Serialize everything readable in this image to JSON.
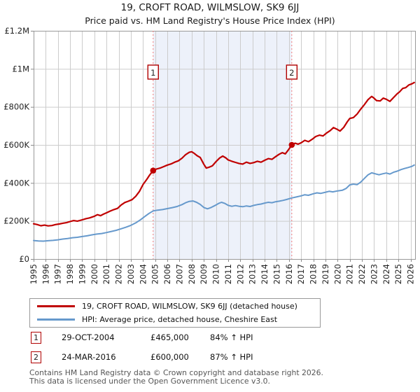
{
  "title": "19, CROFT ROAD, WILMSLOW, SK9 6JJ",
  "subtitle": "Price paid vs. HM Land Registry's House Price Index (HPI)",
  "legend": {
    "items": [
      {
        "name": "price-paid",
        "label": "19, CROFT ROAD, WILMSLOW, SK9 6JJ (detached house)",
        "color": "#c00000"
      },
      {
        "name": "hpi",
        "label": "HPI: Average price, detached house, Cheshire East",
        "color": "#6699cc"
      }
    ]
  },
  "transactions": [
    {
      "num": "1",
      "date": "29-OCT-2004",
      "price": "£465,000",
      "hpi_change": "84% ↑ HPI",
      "year": 2004.83,
      "value_k": 465
    },
    {
      "num": "2",
      "date": "24-MAR-2016",
      "price": "£600,000",
      "hpi_change": "87% ↑ HPI",
      "year": 2016.23,
      "value_k": 600
    }
  ],
  "footer": {
    "line1": "Contains HM Land Registry data © Crown copyright and database right 2026.",
    "line2": "This data is licensed under the Open Government Licence v3.0."
  },
  "colors": {
    "grid": "#cccccc",
    "frame": "#999999",
    "tick": "#888888",
    "axis_label": "#222222",
    "shade": "#edf1fa",
    "dashed": "#f07c7c",
    "marker_border": "#b00000",
    "price_line": "#c00000",
    "hpi_line": "#6699cc"
  },
  "chart_data": {
    "type": "line",
    "x_min": 1995,
    "x_max": 2026.37,
    "ylim_k": [
      0,
      1200
    ],
    "grid": true,
    "legend_position": "bottom",
    "y_ticks": [
      {
        "v": 0,
        "label": "£0"
      },
      {
        "v": 200,
        "label": "£200K"
      },
      {
        "v": 400,
        "label": "£400K"
      },
      {
        "v": 600,
        "label": "£600K"
      },
      {
        "v": 800,
        "label": "£800K"
      },
      {
        "v": 1000,
        "label": "£1M"
      },
      {
        "v": 1200,
        "label": "£1.2M"
      }
    ],
    "x_tick_years": [
      1995,
      1996,
      1997,
      1998,
      1999,
      2000,
      2001,
      2002,
      2003,
      2004,
      2005,
      2006,
      2007,
      2008,
      2009,
      2010,
      2011,
      2012,
      2013,
      2014,
      2015,
      2016,
      2017,
      2018,
      2019,
      2020,
      2021,
      2022,
      2023,
      2024,
      2025,
      2026
    ],
    "shaded_span": {
      "from": 2004.83,
      "to": 2016.23
    },
    "sale_markers": [
      {
        "num": "1",
        "year": 2004.83,
        "value_k": 465
      },
      {
        "num": "2",
        "year": 2016.23,
        "value_k": 600
      }
    ],
    "series": [
      {
        "name": "price-paid",
        "color": "#c00000",
        "width": 2.2,
        "points": [
          [
            1995.0,
            185
          ],
          [
            1995.3,
            181
          ],
          [
            1995.6,
            175
          ],
          [
            1995.9,
            178
          ],
          [
            1996.2,
            174
          ],
          [
            1996.5,
            176
          ],
          [
            1996.8,
            181
          ],
          [
            1997.1,
            184
          ],
          [
            1997.4,
            188
          ],
          [
            1997.7,
            191
          ],
          [
            1998.0,
            197
          ],
          [
            1998.3,
            202
          ],
          [
            1998.6,
            199
          ],
          [
            1999.0,
            206
          ],
          [
            1999.3,
            212
          ],
          [
            1999.6,
            216
          ],
          [
            2000.0,
            225
          ],
          [
            2000.25,
            233
          ],
          [
            2000.5,
            228
          ],
          [
            2000.75,
            236
          ],
          [
            2001.0,
            243
          ],
          [
            2001.3,
            252
          ],
          [
            2001.6,
            260
          ],
          [
            2001.9,
            266
          ],
          [
            2002.2,
            284
          ],
          [
            2002.5,
            297
          ],
          [
            2002.8,
            304
          ],
          [
            2003.1,
            312
          ],
          [
            2003.4,
            330
          ],
          [
            2003.7,
            355
          ],
          [
            2004.0,
            392
          ],
          [
            2004.3,
            418
          ],
          [
            2004.55,
            442
          ],
          [
            2004.83,
            465
          ],
          [
            2005.1,
            473
          ],
          [
            2005.4,
            478
          ],
          [
            2005.7,
            486
          ],
          [
            2006.0,
            494
          ],
          [
            2006.3,
            500
          ],
          [
            2006.6,
            509
          ],
          [
            2006.9,
            516
          ],
          [
            2007.2,
            530
          ],
          [
            2007.5,
            549
          ],
          [
            2007.8,
            561
          ],
          [
            2008.0,
            564
          ],
          [
            2008.2,
            556
          ],
          [
            2008.45,
            543
          ],
          [
            2008.7,
            534
          ],
          [
            2009.0,
            498
          ],
          [
            2009.2,
            478
          ],
          [
            2009.45,
            483
          ],
          [
            2009.7,
            490
          ],
          [
            2010.0,
            512
          ],
          [
            2010.3,
            531
          ],
          [
            2010.55,
            541
          ],
          [
            2010.8,
            532
          ],
          [
            2011.0,
            521
          ],
          [
            2011.3,
            514
          ],
          [
            2011.6,
            508
          ],
          [
            2011.9,
            502
          ],
          [
            2012.2,
            499
          ],
          [
            2012.5,
            509
          ],
          [
            2012.8,
            503
          ],
          [
            2013.1,
            507
          ],
          [
            2013.4,
            514
          ],
          [
            2013.7,
            509
          ],
          [
            2014.0,
            519
          ],
          [
            2014.3,
            528
          ],
          [
            2014.6,
            524
          ],
          [
            2014.9,
            538
          ],
          [
            2015.2,
            551
          ],
          [
            2015.45,
            559
          ],
          [
            2015.7,
            553
          ],
          [
            2015.95,
            574
          ],
          [
            2016.23,
            600
          ],
          [
            2016.5,
            609
          ],
          [
            2016.75,
            604
          ],
          [
            2017.0,
            611
          ],
          [
            2017.3,
            624
          ],
          [
            2017.6,
            617
          ],
          [
            2017.9,
            629
          ],
          [
            2018.2,
            644
          ],
          [
            2018.5,
            651
          ],
          [
            2018.8,
            647
          ],
          [
            2019.1,
            663
          ],
          [
            2019.4,
            676
          ],
          [
            2019.65,
            691
          ],
          [
            2019.9,
            684
          ],
          [
            2020.2,
            673
          ],
          [
            2020.5,
            692
          ],
          [
            2020.8,
            722
          ],
          [
            2021.0,
            739
          ],
          [
            2021.3,
            744
          ],
          [
            2021.6,
            762
          ],
          [
            2021.9,
            788
          ],
          [
            2022.2,
            812
          ],
          [
            2022.5,
            838
          ],
          [
            2022.8,
            855
          ],
          [
            2023.0,
            845
          ],
          [
            2023.2,
            833
          ],
          [
            2023.5,
            831
          ],
          [
            2023.75,
            846
          ],
          [
            2024.0,
            840
          ],
          [
            2024.3,
            829
          ],
          [
            2024.6,
            849
          ],
          [
            2024.9,
            869
          ],
          [
            2025.1,
            879
          ],
          [
            2025.35,
            897
          ],
          [
            2025.6,
            901
          ],
          [
            2025.85,
            915
          ],
          [
            2026.1,
            921
          ],
          [
            2026.3,
            928
          ]
        ]
      },
      {
        "name": "hpi",
        "color": "#6699cc",
        "width": 2,
        "points": [
          [
            1995.0,
            97
          ],
          [
            1995.4,
            95
          ],
          [
            1995.8,
            94
          ],
          [
            1996.2,
            96
          ],
          [
            1996.6,
            98
          ],
          [
            1997.0,
            101
          ],
          [
            1997.4,
            105
          ],
          [
            1997.8,
            108
          ],
          [
            1998.2,
            112
          ],
          [
            1998.6,
            114
          ],
          [
            1999.0,
            118
          ],
          [
            1999.4,
            122
          ],
          [
            1999.8,
            127
          ],
          [
            2000.2,
            131
          ],
          [
            2000.6,
            134
          ],
          [
            2001.0,
            139
          ],
          [
            2001.4,
            145
          ],
          [
            2001.8,
            151
          ],
          [
            2002.2,
            159
          ],
          [
            2002.6,
            167
          ],
          [
            2003.0,
            177
          ],
          [
            2003.4,
            190
          ],
          [
            2003.8,
            207
          ],
          [
            2004.2,
            226
          ],
          [
            2004.5,
            240
          ],
          [
            2004.83,
            253
          ],
          [
            2005.2,
            257
          ],
          [
            2005.6,
            260
          ],
          [
            2006.0,
            265
          ],
          [
            2006.4,
            270
          ],
          [
            2006.8,
            276
          ],
          [
            2007.2,
            286
          ],
          [
            2007.5,
            296
          ],
          [
            2007.8,
            303
          ],
          [
            2008.1,
            305
          ],
          [
            2008.4,
            298
          ],
          [
            2008.7,
            287
          ],
          [
            2009.0,
            271
          ],
          [
            2009.3,
            264
          ],
          [
            2009.6,
            271
          ],
          [
            2009.9,
            281
          ],
          [
            2010.2,
            292
          ],
          [
            2010.45,
            298
          ],
          [
            2010.7,
            293
          ],
          [
            2011.0,
            282
          ],
          [
            2011.3,
            277
          ],
          [
            2011.6,
            281
          ],
          [
            2011.9,
            277
          ],
          [
            2012.2,
            275
          ],
          [
            2012.5,
            279
          ],
          [
            2012.8,
            276
          ],
          [
            2013.1,
            282
          ],
          [
            2013.4,
            286
          ],
          [
            2013.7,
            289
          ],
          [
            2014.0,
            294
          ],
          [
            2014.3,
            298
          ],
          [
            2014.6,
            296
          ],
          [
            2014.9,
            301
          ],
          [
            2015.2,
            304
          ],
          [
            2015.5,
            308
          ],
          [
            2015.8,
            313
          ],
          [
            2016.23,
            321
          ],
          [
            2016.6,
            326
          ],
          [
            2017.0,
            332
          ],
          [
            2017.3,
            338
          ],
          [
            2017.6,
            335
          ],
          [
            2018.0,
            343
          ],
          [
            2018.3,
            348
          ],
          [
            2018.6,
            345
          ],
          [
            2019.0,
            351
          ],
          [
            2019.3,
            356
          ],
          [
            2019.6,
            353
          ],
          [
            2020.0,
            358
          ],
          [
            2020.4,
            362
          ],
          [
            2020.7,
            371
          ],
          [
            2021.0,
            390
          ],
          [
            2021.3,
            394
          ],
          [
            2021.6,
            391
          ],
          [
            2021.9,
            404
          ],
          [
            2022.2,
            424
          ],
          [
            2022.5,
            443
          ],
          [
            2022.8,
            453
          ],
          [
            2023.1,
            448
          ],
          [
            2023.4,
            443
          ],
          [
            2023.7,
            448
          ],
          [
            2024.0,
            452
          ],
          [
            2024.3,
            447
          ],
          [
            2024.6,
            456
          ],
          [
            2024.9,
            462
          ],
          [
            2025.2,
            470
          ],
          [
            2025.5,
            476
          ],
          [
            2025.8,
            481
          ],
          [
            2026.1,
            487
          ],
          [
            2026.3,
            494
          ]
        ]
      }
    ]
  }
}
